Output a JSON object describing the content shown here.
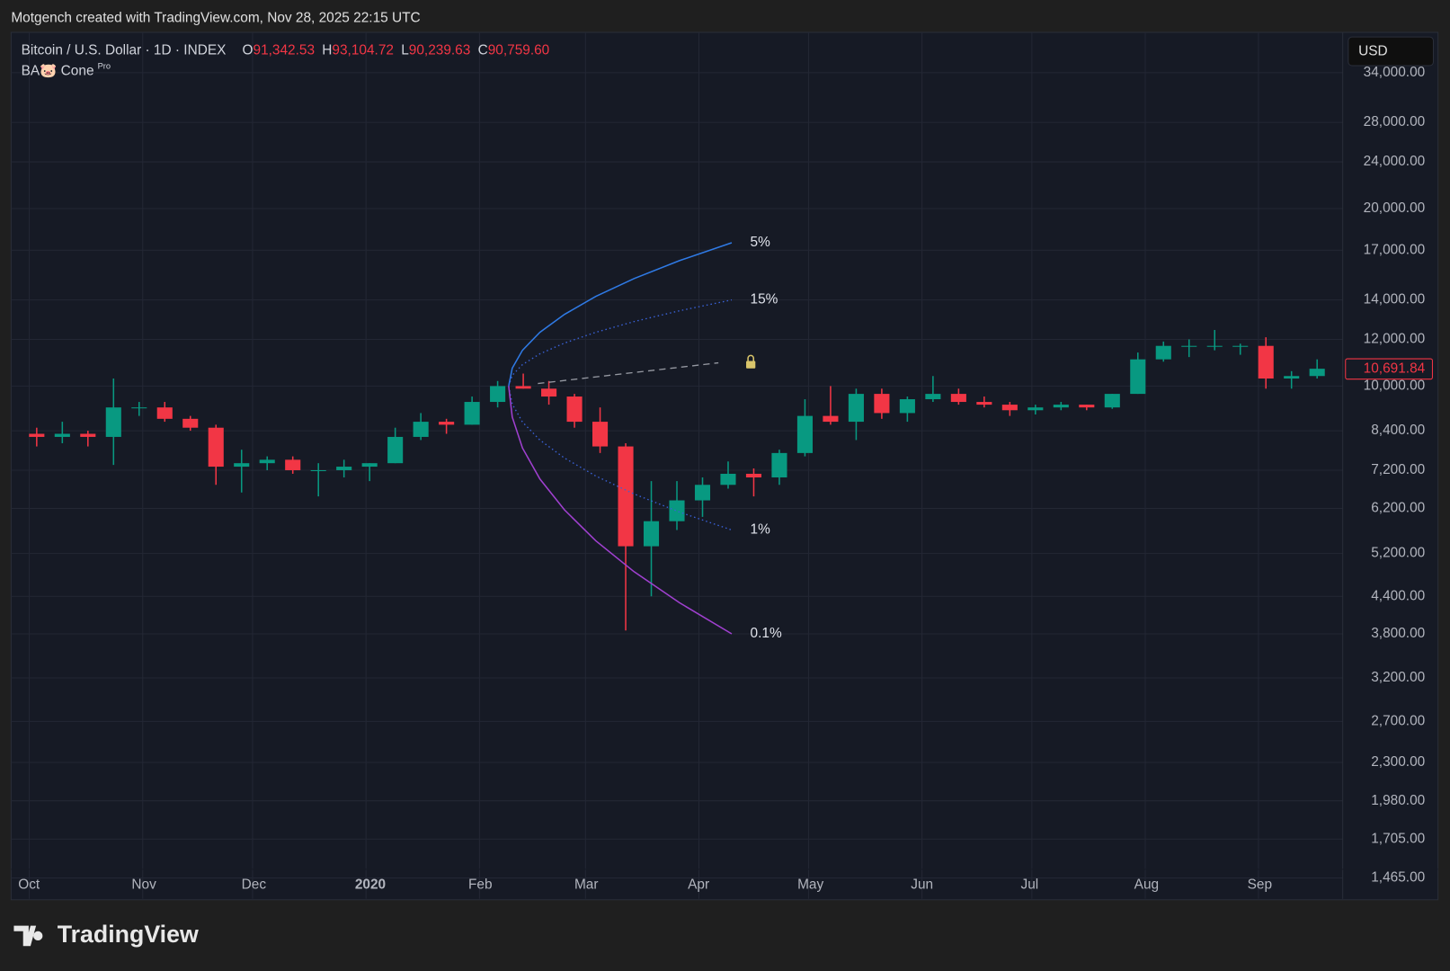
{
  "header": {
    "attribution": "Motgench created with TradingView.com, Nov 28, 2025 22:15 UTC",
    "brand": "TradingView"
  },
  "chart_data": {
    "type": "candlestick",
    "symbol": "Bitcoin / U.S. Dollar · 1D · INDEX",
    "ohlc_legend": [
      {
        "key": "O",
        "value": "91,342.53"
      },
      {
        "key": "H",
        "value": "93,104.72"
      },
      {
        "key": "L",
        "value": "90,239.63"
      },
      {
        "key": "C",
        "value": "90,759.60"
      }
    ],
    "indicator": "BA🐷 Cone",
    "indicator_badge": "Pro",
    "currency": "USD",
    "log_scale": true,
    "grid": true,
    "up_color": "#089981",
    "down_color": "#f23645",
    "categories": [
      null,
      null,
      null,
      null,
      null,
      null,
      null,
      null,
      null,
      null,
      null,
      null,
      null,
      null,
      null,
      null,
      null,
      null,
      null,
      null,
      null,
      null,
      null,
      null,
      null,
      null,
      null,
      null,
      null,
      null,
      null,
      null,
      null,
      null,
      null,
      null,
      null,
      null,
      null,
      null,
      null,
      null,
      null,
      null,
      null,
      null,
      null,
      null,
      null,
      null,
      null
    ],
    "open": [
      8300,
      8200,
      8300,
      8200,
      9200,
      9200,
      8800,
      8500,
      7300,
      7400,
      7500,
      7200,
      7200,
      7300,
      7400,
      8200,
      8700,
      8600,
      9400,
      10000,
      9900,
      9600,
      8700,
      7900,
      5350,
      5900,
      6400,
      6800,
      7100,
      7000,
      7700,
      8900,
      8700,
      9700,
      9000,
      9500,
      9700,
      9400,
      9300,
      9100,
      9200,
      9300,
      9200,
      9700,
      11100,
      11700,
      11700,
      11700,
      11700,
      10300,
      10400
    ],
    "high": [
      8500,
      8700,
      8400,
      10300,
      9400,
      9400,
      8900,
      8600,
      7800,
      7600,
      7600,
      7400,
      7500,
      7400,
      8500,
      9000,
      8800,
      9600,
      10200,
      10500,
      10200,
      9700,
      9200,
      8000,
      6900,
      6900,
      7000,
      7450,
      7250,
      7800,
      9500,
      10000,
      9900,
      9900,
      9600,
      10400,
      9900,
      9600,
      9400,
      9300,
      9400,
      9300,
      9700,
      11400,
      11900,
      12000,
      12450,
      11800,
      12100,
      10600,
      11100
    ],
    "low": [
      7900,
      8000,
      7900,
      7350,
      8900,
      8700,
      8400,
      6800,
      6600,
      7200,
      7100,
      6500,
      7000,
      6900,
      7400,
      8100,
      8300,
      8600,
      9200,
      9900,
      9300,
      8500,
      7700,
      3850,
      4400,
      5700,
      6000,
      6700,
      6500,
      6800,
      7600,
      8600,
      8100,
      8800,
      8700,
      9400,
      9300,
      9200,
      8900,
      8950,
      9100,
      9100,
      9150,
      9700,
      11000,
      11200,
      11500,
      11300,
      9900,
      9900,
      10300
    ],
    "close": [
      8200,
      8300,
      8200,
      9200,
      9200,
      8800,
      8500,
      7300,
      7400,
      7500,
      7200,
      7200,
      7300,
      7400,
      8200,
      8700,
      8600,
      9400,
      10000,
      9900,
      9600,
      8700,
      7900,
      5350,
      5900,
      6400,
      6800,
      7100,
      7000,
      7700,
      8900,
      8700,
      9700,
      9000,
      9500,
      9700,
      9400,
      9300,
      9100,
      9200,
      9300,
      9200,
      9700,
      11100,
      11700,
      11700,
      11700,
      11700,
      10300,
      10400,
      10700
    ],
    "last_price": {
      "value": 10691.84,
      "label": "10,691.84"
    },
    "xlim": [
      -1,
      51
    ],
    "ylim": [
      1350,
      39800
    ],
    "xticks": [
      {
        "value": -0.29,
        "label": "Oct"
      },
      {
        "value": 4.14,
        "label": "Nov"
      },
      {
        "value": 8.43,
        "label": "Dec"
      },
      {
        "value": 12.86,
        "label": "2020"
      },
      {
        "value": 17.29,
        "label": "Feb"
      },
      {
        "value": 21.43,
        "label": "Mar"
      },
      {
        "value": 25.86,
        "label": "Apr"
      },
      {
        "value": 30.14,
        "label": "May"
      },
      {
        "value": 34.57,
        "label": "Jun"
      },
      {
        "value": 38.86,
        "label": "Jul"
      },
      {
        "value": 43.29,
        "label": "Aug"
      },
      {
        "value": 47.71,
        "label": "Sep"
      }
    ],
    "yticks": [
      {
        "value": 34000,
        "label": "34,000.00"
      },
      {
        "value": 28000,
        "label": "28,000.00"
      },
      {
        "value": 24000,
        "label": "24,000.00"
      },
      {
        "value": 20000,
        "label": "20,000.00"
      },
      {
        "value": 17000,
        "label": "17,000.00"
      },
      {
        "value": 14000,
        "label": "14,000.00"
      },
      {
        "value": 12000,
        "label": "12,000.00"
      },
      {
        "value": 10000,
        "label": "10,000.00"
      },
      {
        "value": 8400,
        "label": "8,400.00"
      },
      {
        "value": 7200,
        "label": "7,200.00"
      },
      {
        "value": 6200,
        "label": "6,200.00"
      },
      {
        "value": 5200,
        "label": "5,200.00"
      },
      {
        "value": 4400,
        "label": "4,400.00"
      },
      {
        "value": 3800,
        "label": "3,800.00"
      },
      {
        "value": 3200,
        "label": "3,200.00"
      },
      {
        "value": 2700,
        "label": "2,700.00"
      },
      {
        "value": 2300,
        "label": "2,300.00"
      },
      {
        "value": 1980,
        "label": "1,980.00"
      },
      {
        "value": 1705,
        "label": "1,705.00"
      },
      {
        "value": 1465,
        "label": "1,465.00"
      }
    ],
    "series": [
      {
        "name": "5%",
        "color": "#2f7ae5",
        "style": "solid",
        "x": [
          18.43,
          18.57,
          18.97,
          19.65,
          20.61,
          21.83,
          23.33,
          25.1,
          27.14
        ],
        "values": [
          10000,
          10725,
          11503,
          12337,
          13231,
          14191,
          15220,
          16323,
          17500
        ]
      },
      {
        "name": "15%",
        "color": "#3a62d8",
        "style": "dotted",
        "x": [
          18.43,
          18.57,
          18.97,
          19.65,
          20.61,
          21.83,
          23.33,
          25.1,
          27.14
        ],
        "values": [
          10000,
          10429,
          10876,
          11343,
          11829,
          12337,
          12866,
          13418,
          14000
        ]
      },
      {
        "color": "#9598a1",
        "style": "dashed",
        "x": [
          19.57,
          26.62
        ],
        "values": [
          10100,
          10950
        ]
      },
      {
        "name": "1%",
        "color": "#3a62d8",
        "style": "dotted",
        "x": [
          18.43,
          18.57,
          18.97,
          19.65,
          20.61,
          21.83,
          23.33,
          25.1,
          27.14
        ],
        "values": [
          10000,
          9321,
          8689,
          8099,
          7550,
          7039,
          6561,
          6115,
          5700
        ]
      },
      {
        "name": "0.1%",
        "color": "#a040d0",
        "style": "solid",
        "x": [
          18.43,
          18.57,
          18.97,
          19.65,
          20.61,
          21.83,
          23.33,
          25.1,
          27.14
        ],
        "values": [
          10000,
          8861,
          7851,
          6957,
          6166,
          5466,
          4843,
          4291,
          3800
        ]
      }
    ]
  }
}
